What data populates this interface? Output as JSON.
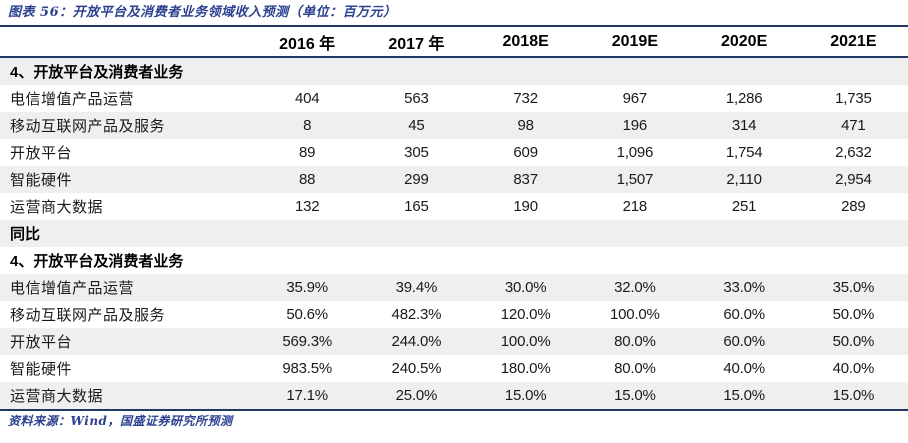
{
  "figure": {
    "title": "图表 56：开放平台及消费者业务领域收入预测（单位：百万元）",
    "source": "资料来源：Wind，国盛证券研究所预测"
  },
  "colors": {
    "rule_navy": "#1f3864",
    "caption_blue": "#2c4190",
    "stripe_gray": "#efefef"
  },
  "table": {
    "columns": [
      "2016 年",
      "2017 年",
      "2018E",
      "2019E",
      "2020E",
      "2021E"
    ],
    "rows": [
      {
        "type": "section",
        "label": "4、开放平台及消费者业务",
        "values": [
          "",
          "",
          "",
          "",
          "",
          ""
        ]
      },
      {
        "type": "data",
        "label": "电信增值产品运营",
        "values": [
          "404",
          "563",
          "732",
          "967",
          "1,286",
          "1,735"
        ]
      },
      {
        "type": "data",
        "label": "移动互联网产品及服务",
        "values": [
          "8",
          "45",
          "98",
          "196",
          "314",
          "471"
        ]
      },
      {
        "type": "data",
        "label": "开放平台",
        "values": [
          "89",
          "305",
          "609",
          "1,096",
          "1,754",
          "2,632"
        ]
      },
      {
        "type": "data",
        "label": "智能硬件",
        "values": [
          "88",
          "299",
          "837",
          "1,507",
          "2,110",
          "2,954"
        ]
      },
      {
        "type": "data",
        "label": "运营商大数据",
        "values": [
          "132",
          "165",
          "190",
          "218",
          "251",
          "289"
        ]
      },
      {
        "type": "section",
        "label": "同比",
        "values": [
          "",
          "",
          "",
          "",
          "",
          ""
        ]
      },
      {
        "type": "section",
        "label": "4、开放平台及消费者业务",
        "values": [
          "",
          "",
          "",
          "",
          "",
          ""
        ]
      },
      {
        "type": "data",
        "label": "电信增值产品运营",
        "values": [
          "35.9%",
          "39.4%",
          "30.0%",
          "32.0%",
          "33.0%",
          "35.0%"
        ]
      },
      {
        "type": "data",
        "label": "移动互联网产品及服务",
        "values": [
          "50.6%",
          "482.3%",
          "120.0%",
          "100.0%",
          "60.0%",
          "50.0%"
        ]
      },
      {
        "type": "data",
        "label": "开放平台",
        "values": [
          "569.3%",
          "244.0%",
          "100.0%",
          "80.0%",
          "60.0%",
          "50.0%"
        ]
      },
      {
        "type": "data",
        "label": "智能硬件",
        "values": [
          "983.5%",
          "240.5%",
          "180.0%",
          "80.0%",
          "40.0%",
          "40.0%"
        ]
      },
      {
        "type": "data",
        "label": "运营商大数据",
        "values": [
          "17.1%",
          "25.0%",
          "15.0%",
          "15.0%",
          "15.0%",
          "15.0%"
        ]
      }
    ]
  },
  "chart_data": {
    "type": "table",
    "title": "开放平台及消费者业务领域收入预测（单位：百万元）",
    "columns": [
      "2016 年",
      "2017 年",
      "2018E",
      "2019E",
      "2020E",
      "2021E"
    ],
    "sections": [
      {
        "name": "4、开放平台及消费者业务（收入，百万元）",
        "series": [
          {
            "name": "电信增值产品运营",
            "values": [
              404,
              563,
              732,
              967,
              1286,
              1735
            ]
          },
          {
            "name": "移动互联网产品及服务",
            "values": [
              8,
              45,
              98,
              196,
              314,
              471
            ]
          },
          {
            "name": "开放平台",
            "values": [
              89,
              305,
              609,
              1096,
              1754,
              2632
            ]
          },
          {
            "name": "智能硬件",
            "values": [
              88,
              299,
              837,
              1507,
              2110,
              2954
            ]
          },
          {
            "name": "运营商大数据",
            "values": [
              132,
              165,
              190,
              218,
              251,
              289
            ]
          }
        ]
      },
      {
        "name": "同比（4、开放平台及消费者业务）",
        "unit": "percent",
        "series": [
          {
            "name": "电信增值产品运营",
            "values": [
              35.9,
              39.4,
              30.0,
              32.0,
              33.0,
              35.0
            ]
          },
          {
            "name": "移动互联网产品及服务",
            "values": [
              50.6,
              482.3,
              120.0,
              100.0,
              60.0,
              50.0
            ]
          },
          {
            "name": "开放平台",
            "values": [
              569.3,
              244.0,
              100.0,
              80.0,
              60.0,
              50.0
            ]
          },
          {
            "name": "智能硬件",
            "values": [
              983.5,
              240.5,
              180.0,
              80.0,
              40.0,
              40.0
            ]
          },
          {
            "name": "运营商大数据",
            "values": [
              17.1,
              25.0,
              15.0,
              15.0,
              15.0,
              15.0
            ]
          }
        ]
      }
    ],
    "source": "Wind，国盛证券研究所预测"
  }
}
